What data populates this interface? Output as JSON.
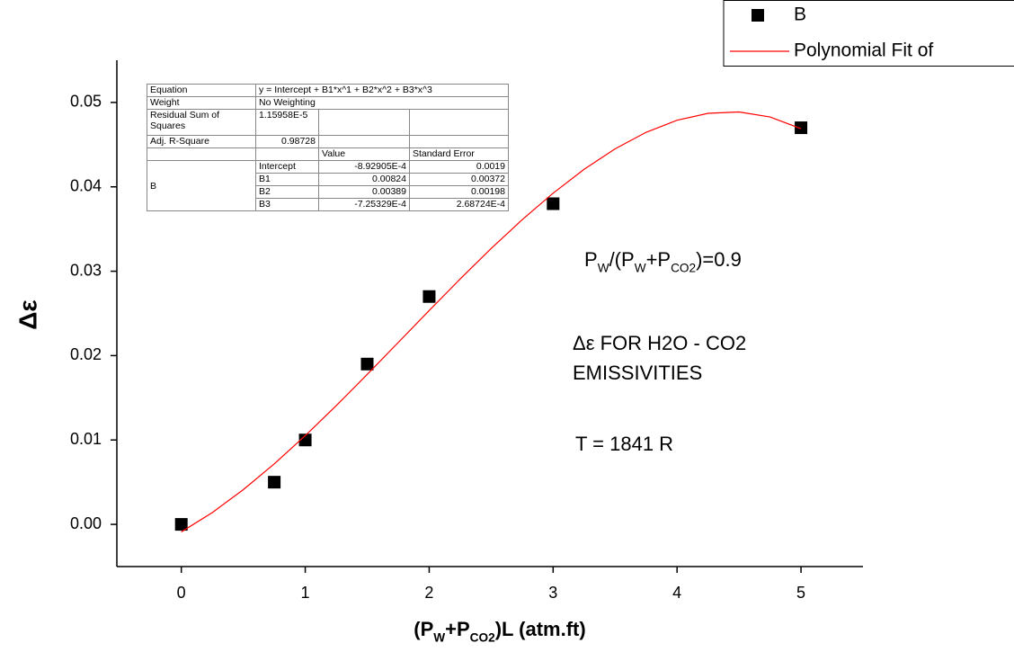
{
  "chart_data": {
    "type": "scatter",
    "x_label_parts": [
      {
        "text": "(P"
      },
      {
        "text": "W",
        "sub": true
      },
      {
        "text": "+P"
      },
      {
        "text": "CO2",
        "sub": true
      },
      {
        "text": ")L   (atm.ft)"
      }
    ],
    "y_label": "Δε",
    "xlim": [
      -0.52,
      5.5
    ],
    "ylim": [
      -0.005,
      0.055
    ],
    "xticks": [
      0,
      1,
      2,
      3,
      4,
      5
    ],
    "yticks": [
      {
        "value": 0,
        "label": "0.00"
      },
      0.01,
      0.02,
      0.03,
      0.04,
      0.05
    ],
    "series": [
      {
        "name": "B",
        "type": "scatter",
        "color": "#000000",
        "x": [
          0,
          0.75,
          1,
          1.5,
          2,
          3,
          5
        ],
        "values": [
          0,
          0.005,
          0.01,
          0.019,
          0.027,
          0.038,
          0.047
        ]
      },
      {
        "name": "Polynomial Fit of",
        "type": "line",
        "color": "#ff0000",
        "x": [
          0,
          0.25,
          0.5,
          0.75,
          1,
          1.25,
          1.5,
          1.75,
          2,
          2.25,
          2.5,
          2.75,
          3,
          3.25,
          3.5,
          3.75,
          4,
          4.25,
          4.5,
          4.75,
          5
        ],
        "values": [
          -0.00089,
          0.0014,
          0.00411,
          0.00717,
          0.01051,
          0.01407,
          0.01777,
          0.02155,
          0.02534,
          0.02908,
          0.03269,
          0.0361,
          0.03925,
          0.04208,
          0.0445,
          0.04646,
          0.04789,
          0.04871,
          0.04887,
          0.04828,
          0.04689
        ]
      }
    ],
    "legend": "top-right",
    "annotations": [
      {
        "parts": [
          {
            "text": "P"
          },
          {
            "text": "W",
            "sub": true
          },
          {
            "text": "/(P"
          },
          {
            "text": "W",
            "sub": true
          },
          {
            "text": "+P"
          },
          {
            "text": "CO2",
            "sub": true
          },
          {
            "text": ")=0.9"
          }
        ]
      },
      {
        "parts": [
          {
            "text": "Δε FOR H2O - CO2"
          }
        ]
      },
      {
        "parts": [
          {
            "text": "EMISSIVITIES"
          }
        ]
      },
      {
        "parts": [
          {
            "text": "T = 1841 R"
          }
        ]
      }
    ],
    "fit_table": {
      "equation": [
        "Equation",
        "y = Intercept + B1*x^1 + B2*x^2 + B3*x^3"
      ],
      "weight": [
        "Weight",
        "No Weighting"
      ],
      "residual": [
        "Residual Sum of Squares",
        "1.15958E-5"
      ],
      "adj_r_square": [
        "Adj. R-Square",
        "0.98728"
      ],
      "header": [
        "Value",
        "Standard Error"
      ],
      "group": "B",
      "params": [
        [
          "Intercept",
          "-8.92905E-4",
          "0.0019"
        ],
        [
          "B1",
          "0.00824",
          "0.00372"
        ],
        [
          "B2",
          "0.00389",
          "0.00198"
        ],
        [
          "B3",
          "-7.25329E-4",
          "2.68724E-4"
        ]
      ]
    }
  }
}
